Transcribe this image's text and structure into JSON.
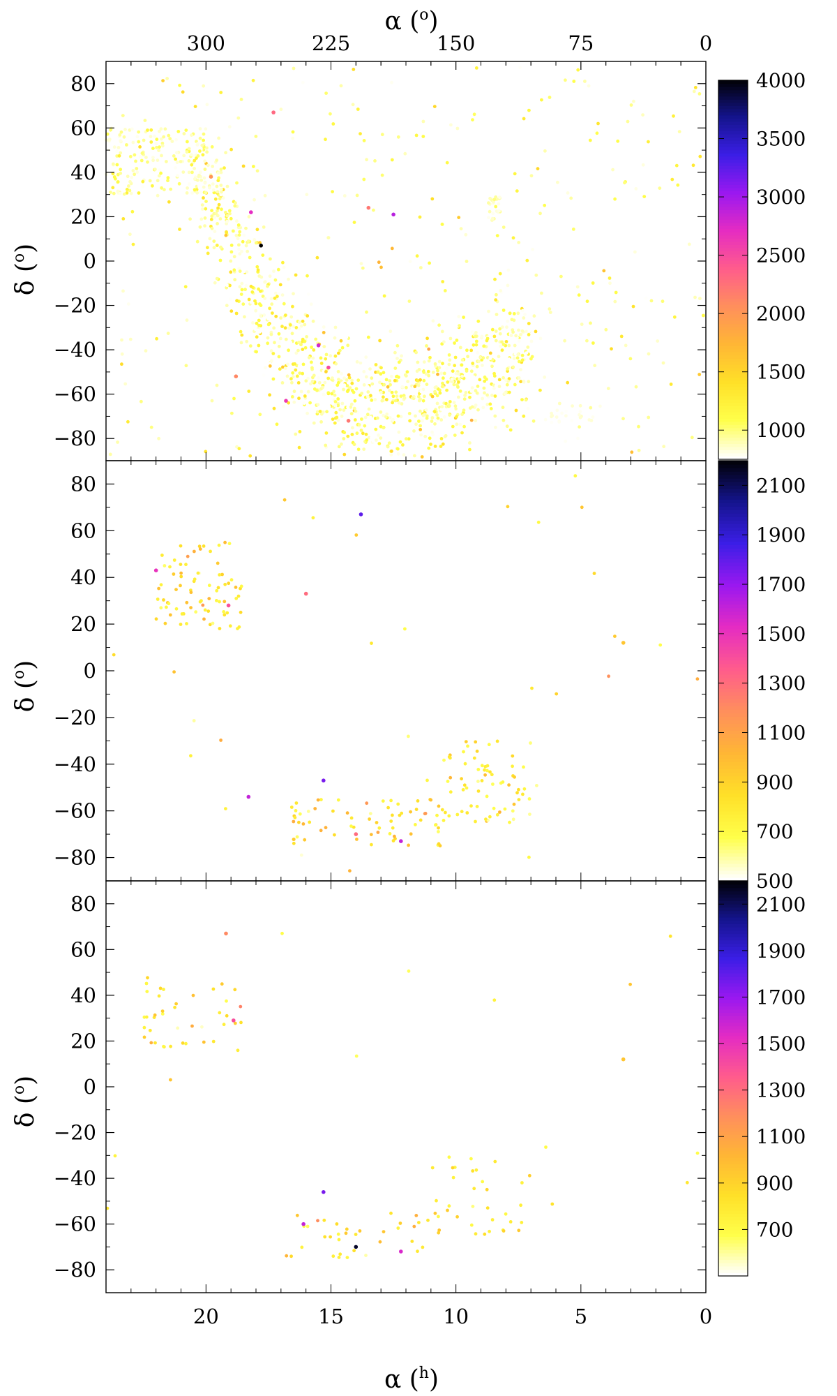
{
  "figure": {
    "top_axis_label": "α (",
    "top_axis_unit": "o",
    "bottom_axis_label": "α (",
    "bottom_axis_unit": "h",
    "y_axis_label": "δ (",
    "y_axis_unit": "o",
    "label_close": ")"
  },
  "colormap": [
    "#ffffff",
    "#ffff4a",
    "#ffe028",
    "#ffb635",
    "#ff8f5c",
    "#ff5c8c",
    "#e52cc2",
    "#9a18f0",
    "#3b1ee6",
    "#14148c",
    "#000000"
  ],
  "chart_data": [
    {
      "type": "scatter",
      "panel": "top",
      "x_axis": {
        "label": "α (h)",
        "range": [
          24,
          0
        ],
        "ticks": [
          20,
          15,
          10,
          5,
          0
        ]
      },
      "x2_axis": {
        "label": "α (o)",
        "range": [
          360,
          0
        ],
        "ticks": [
          300,
          225,
          150,
          75,
          0
        ]
      },
      "y_axis": {
        "label": "δ (o)",
        "range": [
          -90,
          90
        ],
        "ticks": [
          80,
          60,
          40,
          20,
          0,
          -20,
          -40,
          -60,
          -80
        ]
      },
      "colorbar": {
        "range": [
          750,
          4000
        ],
        "ticks": [
          1000,
          1500,
          2000,
          2500,
          3000,
          3500,
          4000
        ]
      },
      "components": [
        {
          "kind": "band",
          "count": 1100,
          "x_range": [
            7.0,
            20.5
          ],
          "curve": [
            [
              20.5,
              45
            ],
            [
              20.0,
              38
            ],
            [
              19.5,
              25
            ],
            [
              19.0,
              10
            ],
            [
              18.5,
              -5
            ],
            [
              18.0,
              -20
            ],
            [
              17.0,
              -35
            ],
            [
              16.0,
              -48
            ],
            [
              15.0,
              -57
            ],
            [
              14.0,
              -63
            ],
            [
              13.0,
              -66
            ],
            [
              12.0,
              -67
            ],
            [
              11.0,
              -64
            ],
            [
              10.0,
              -58
            ],
            [
              9.0,
              -50
            ],
            [
              8.0,
              -42
            ],
            [
              7.0,
              -35
            ]
          ],
          "spread": 14,
          "gap": 2.5,
          "value_mean": 950,
          "value_sd": 250
        },
        {
          "kind": "box",
          "count": 180,
          "x": [
            20.0,
            24.0
          ],
          "y": [
            30,
            60
          ],
          "value_mean": 900,
          "value_sd": 150
        },
        {
          "kind": "box",
          "count": 350,
          "x": [
            0.0,
            24.0
          ],
          "y": [
            -88,
            88
          ],
          "value_mean": 1000,
          "value_sd": 300
        },
        {
          "kind": "box",
          "count": 25,
          "x": [
            4.5,
            6.5
          ],
          "y": [
            -73,
            -64
          ],
          "value_mean": 800,
          "value_sd": 60
        },
        {
          "kind": "box",
          "count": 25,
          "x": [
            8.2,
            8.7
          ],
          "y": [
            18,
            30
          ],
          "value_mean": 850,
          "value_sd": 100
        }
      ],
      "points": [
        {
          "x": 17.8,
          "y": 7,
          "value": 4000
        },
        {
          "x": 12.5,
          "y": 21,
          "value": 2900
        },
        {
          "x": 18.2,
          "y": 22,
          "value": 2700
        },
        {
          "x": 15.5,
          "y": -38,
          "value": 2800
        },
        {
          "x": 16.8,
          "y": -63,
          "value": 2600
        },
        {
          "x": 15.1,
          "y": -48,
          "value": 2500
        },
        {
          "x": 17.3,
          "y": 67,
          "value": 2300
        },
        {
          "x": 14.3,
          "y": -72,
          "value": 2200
        },
        {
          "x": 18.8,
          "y": -52,
          "value": 2100
        },
        {
          "x": 19.8,
          "y": 38,
          "value": 2000
        },
        {
          "x": 13.5,
          "y": 24,
          "value": 2200
        }
      ]
    },
    {
      "type": "scatter",
      "panel": "middle",
      "x_axis": {
        "label": "α (h)",
        "range": [
          24,
          0
        ],
        "ticks": [
          20,
          15,
          10,
          5,
          0
        ]
      },
      "y_axis": {
        "label": "δ (o)",
        "range": [
          -90,
          90
        ],
        "ticks": [
          80,
          60,
          40,
          20,
          0,
          -20,
          -40,
          -60,
          -80
        ]
      },
      "colorbar": {
        "range": [
          500,
          2200
        ],
        "ticks": [
          500,
          700,
          900,
          1100,
          1300,
          1500,
          1700,
          1900,
          2100
        ]
      },
      "components": [
        {
          "kind": "box",
          "count": 80,
          "x": [
            18.5,
            22.0
          ],
          "y": [
            18,
            55
          ],
          "value_mean": 800,
          "value_sd": 150
        },
        {
          "kind": "box",
          "count": 70,
          "x": [
            7.0,
            10.5
          ],
          "y": [
            -65,
            -30
          ],
          "value_mean": 750,
          "value_sd": 120
        },
        {
          "kind": "box",
          "count": 70,
          "x": [
            10.5,
            17.0
          ],
          "y": [
            -75,
            -55
          ],
          "value_mean": 850,
          "value_sd": 180
        },
        {
          "kind": "box",
          "count": 30,
          "x": [
            0.0,
            24.0
          ],
          "y": [
            -88,
            85
          ],
          "value_mean": 750,
          "value_sd": 150
        }
      ],
      "points": [
        {
          "x": 13.8,
          "y": 67,
          "value": 1800
        },
        {
          "x": 15.3,
          "y": -47,
          "value": 1750
        },
        {
          "x": 18.3,
          "y": -54,
          "value": 1600
        },
        {
          "x": 12.2,
          "y": -73,
          "value": 1600
        },
        {
          "x": 22.0,
          "y": 43,
          "value": 1500
        },
        {
          "x": 19.1,
          "y": 28,
          "value": 1400
        },
        {
          "x": 16.0,
          "y": 33,
          "value": 1300
        },
        {
          "x": 14.0,
          "y": -70,
          "value": 1300
        },
        {
          "x": 3.3,
          "y": 12,
          "value": 950
        }
      ]
    },
    {
      "type": "scatter",
      "panel": "bottom",
      "x_axis": {
        "label": "α (h)",
        "range": [
          24,
          0
        ],
        "ticks": [
          20,
          15,
          10,
          5,
          0
        ]
      },
      "y_axis": {
        "label": "δ (o)",
        "range": [
          -90,
          90
        ],
        "ticks": [
          80,
          60,
          40,
          20,
          0,
          -20,
          -40,
          -60,
          -80
        ]
      },
      "colorbar": {
        "range": [
          500,
          2200
        ],
        "ticks": [
          700,
          900,
          1100,
          1300,
          1500,
          1700,
          1900,
          2100
        ]
      },
      "components": [
        {
          "kind": "box",
          "count": 40,
          "x": [
            18.5,
            22.5
          ],
          "y": [
            15,
            48
          ],
          "value_mean": 800,
          "value_sd": 150
        },
        {
          "kind": "box",
          "count": 35,
          "x": [
            7.0,
            11.0
          ],
          "y": [
            -65,
            -30
          ],
          "value_mean": 780,
          "value_sd": 130
        },
        {
          "kind": "box",
          "count": 35,
          "x": [
            11.0,
            16.8
          ],
          "y": [
            -75,
            -55
          ],
          "value_mean": 850,
          "value_sd": 180
        },
        {
          "kind": "box",
          "count": 15,
          "x": [
            0.0,
            24.0
          ],
          "y": [
            -86,
            82
          ],
          "value_mean": 750,
          "value_sd": 150
        }
      ],
      "points": [
        {
          "x": 14.0,
          "y": -70,
          "value": 2150
        },
        {
          "x": 15.3,
          "y": -46,
          "value": 1750
        },
        {
          "x": 16.1,
          "y": -60,
          "value": 1600
        },
        {
          "x": 12.2,
          "y": -72,
          "value": 1550
        },
        {
          "x": 18.9,
          "y": 29,
          "value": 1400
        },
        {
          "x": 19.2,
          "y": 67,
          "value": 1200
        },
        {
          "x": 3.3,
          "y": 12,
          "value": 950
        }
      ]
    }
  ]
}
